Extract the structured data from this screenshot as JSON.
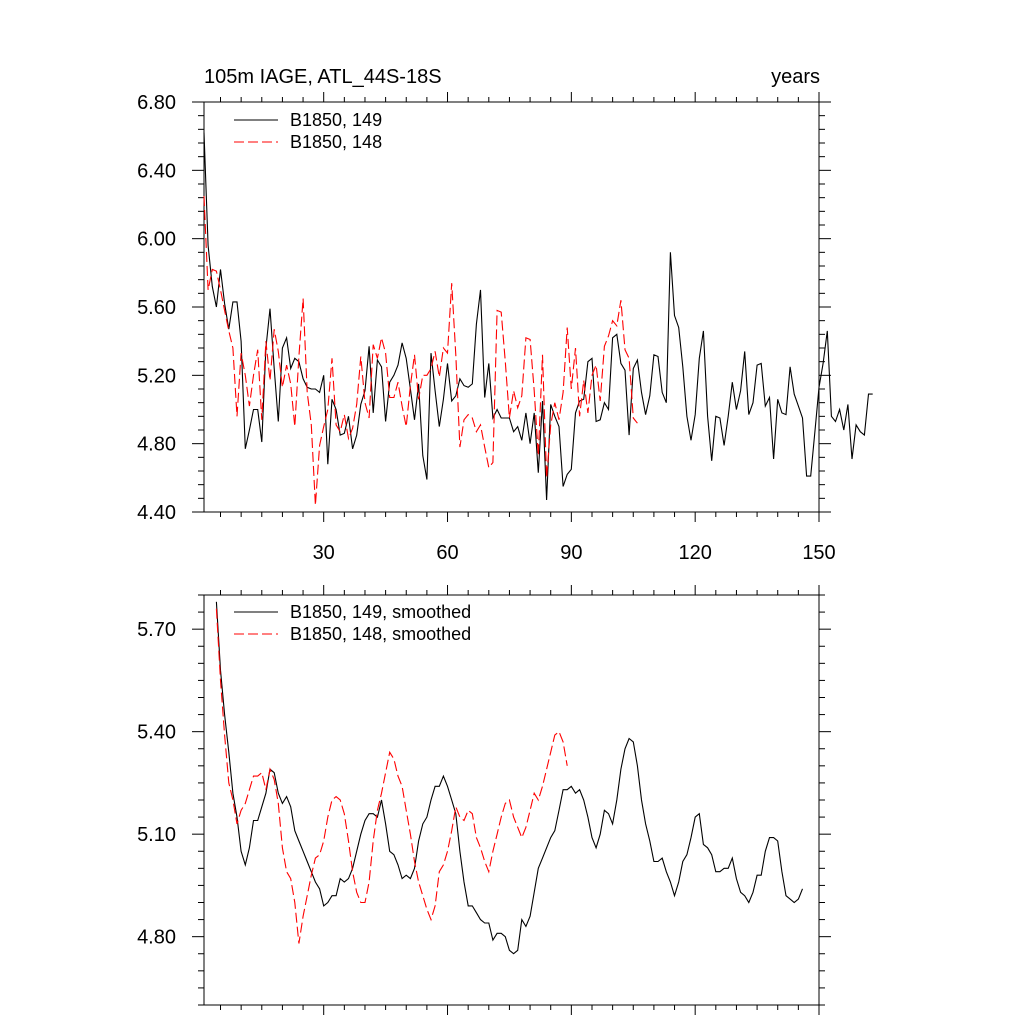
{
  "chart_data": [
    {
      "type": "line",
      "title": "105m IAGE, ATL_44S-18S",
      "right_title": "years",
      "xlim": [
        1,
        150
      ],
      "ylim": [
        4.4,
        6.8
      ],
      "x_ticks": [
        30,
        60,
        90,
        120,
        150
      ],
      "y_ticks": [
        4.4,
        4.8,
        5.2,
        5.6,
        6.0,
        6.4,
        6.8
      ],
      "y_tick_labels": [
        "4.40",
        "4.80",
        "5.20",
        "5.60",
        "6.00",
        "6.40",
        "6.80"
      ],
      "legend_position": "top-left",
      "grid": false,
      "series": [
        {
          "name": "B1850, 149",
          "color": "#000000",
          "dash": "solid",
          "values": [
            6.62,
            5.96,
            5.72,
            5.6,
            5.82,
            5.62,
            5.47,
            5.63,
            5.63,
            5.4,
            4.77,
            4.88,
            5.0,
            5.0,
            4.81,
            5.36,
            5.59,
            5.24,
            4.93,
            5.36,
            5.42,
            5.24,
            5.3,
            5.28,
            5.18,
            5.13,
            5.12,
            5.12,
            5.1,
            5.2,
            4.68,
            5.06,
            5.0,
            4.85,
            4.86,
            4.96,
            4.77,
            4.85,
            5.03,
            5.11,
            5.37,
            4.98,
            5.29,
            5.25,
            4.93,
            5.16,
            5.2,
            5.26,
            5.39,
            5.3,
            5.12,
            4.94,
            5.15,
            4.73,
            4.59,
            5.33,
            5.11,
            4.9,
            5.06,
            5.27,
            5.05,
            5.08,
            5.18,
            5.14,
            5.13,
            5.15,
            5.5,
            5.7,
            5.07,
            5.27,
            4.95,
            5.0,
            4.95,
            4.95,
            4.95,
            4.87,
            4.9,
            4.82,
            4.98,
            4.8,
            4.98,
            4.63,
            5.05,
            4.47,
            5.03,
            4.96,
            4.9,
            4.55,
            4.62,
            4.65,
            4.98,
            5.05,
            5.06,
            5.28,
            5.3,
            4.93,
            4.94,
            5.04,
            5.0,
            5.42,
            5.44,
            5.27,
            5.23,
            4.85,
            5.24,
            5.29,
            5.1,
            4.97,
            5.08,
            5.32,
            5.31,
            5.1,
            5.04,
            5.92,
            5.55,
            5.48,
            5.25,
            4.96,
            4.82,
            4.97,
            5.3,
            5.46,
            4.96,
            4.7,
            4.96,
            4.95,
            4.79,
            4.96,
            5.16,
            5.0,
            5.11,
            5.34,
            4.97,
            5.04,
            5.26,
            5.27,
            5.02,
            5.07,
            4.71,
            5.06,
            4.98,
            4.97,
            5.25,
            5.09,
            5.02,
            4.95,
            4.61,
            4.61,
            4.87,
            5.13,
            5.27,
            5.46,
            4.96,
            4.93,
            5.0,
            4.88,
            5.03,
            4.71,
            4.91,
            4.87,
            4.85,
            5.09,
            5.09
          ]
        },
        {
          "name": "B1850, 148",
          "color": "#ff0000",
          "dash": "dashed",
          "values": [
            6.25,
            5.7,
            5.82,
            5.81,
            5.7,
            5.58,
            5.46,
            5.36,
            4.96,
            5.33,
            5.2,
            5.02,
            5.2,
            5.35,
            4.94,
            5.4,
            5.17,
            5.47,
            5.34,
            5.13,
            5.26,
            5.15,
            4.9,
            5.31,
            5.65,
            5.1,
            4.91,
            4.44,
            4.79,
            4.9,
            5.0,
            5.3,
            4.91,
            4.87,
            4.97,
            4.83,
            4.89,
            5.03,
            5.31,
            5.04,
            4.95,
            5.38,
            5.3,
            5.42,
            5.33,
            5.07,
            5.07,
            5.16,
            5.02,
            4.9,
            5.14,
            5.32,
            5.06,
            5.2,
            5.2,
            5.24,
            5.34,
            5.19,
            5.36,
            5.33,
            5.74,
            5.32,
            4.78,
            4.94,
            4.97,
            4.95,
            4.87,
            4.91,
            4.78,
            4.66,
            4.69,
            5.58,
            5.57,
            5.28,
            4.95,
            5.11,
            5.01,
            5.08,
            5.42,
            5.41,
            5.11,
            4.73,
            5.32,
            4.6,
            4.91,
            5.04,
            4.94,
            5.1,
            5.48,
            5.12,
            5.36,
            4.96,
            5.17,
            4.98,
            5.2,
            5.26,
            5.05,
            5.37,
            5.43,
            5.52,
            5.49,
            5.64,
            5.35,
            5.3,
            4.95,
            4.92
          ]
        }
      ]
    },
    {
      "type": "line",
      "xlim": [
        1,
        150
      ],
      "ylim": [
        4.6,
        5.8
      ],
      "x_ticks": [
        30,
        60,
        90,
        120,
        150
      ],
      "y_ticks": [
        4.8,
        5.1,
        5.4,
        5.7
      ],
      "y_tick_labels": [
        "4.80",
        "5.10",
        "5.40",
        "5.70"
      ],
      "legend_position": "top-left",
      "grid": false,
      "series": [
        {
          "name": "B1850, 149, smoothed",
          "color": "#000000",
          "dash": "solid",
          "start_x": 4,
          "values": [
            5.78,
            5.58,
            5.45,
            5.34,
            5.22,
            5.15,
            5.05,
            5.01,
            5.06,
            5.14,
            5.14,
            5.18,
            5.22,
            5.29,
            5.28,
            5.22,
            5.19,
            5.21,
            5.18,
            5.11,
            5.08,
            5.05,
            5.02,
            4.99,
            4.96,
            4.94,
            4.89,
            4.9,
            4.92,
            4.92,
            4.97,
            4.96,
            4.97,
            5.0,
            5.05,
            5.1,
            5.14,
            5.16,
            5.16,
            5.15,
            5.2,
            5.13,
            5.05,
            5.04,
            5.01,
            4.97,
            4.98,
            4.97,
            5.0,
            5.08,
            5.13,
            5.15,
            5.2,
            5.24,
            5.24,
            5.27,
            5.24,
            5.2,
            5.16,
            5.05,
            4.96,
            4.89,
            4.89,
            4.87,
            4.85,
            4.84,
            4.84,
            4.79,
            4.81,
            4.81,
            4.8,
            4.76,
            4.75,
            4.76,
            4.85,
            4.83,
            4.86,
            4.93,
            5.0,
            5.03,
            5.06,
            5.09,
            5.11,
            5.17,
            5.23,
            5.23,
            5.24,
            5.22,
            5.23,
            5.2,
            5.15,
            5.09,
            5.06,
            5.1,
            5.17,
            5.16,
            5.13,
            5.2,
            5.29,
            5.35,
            5.38,
            5.37,
            5.3,
            5.2,
            5.13,
            5.08,
            5.02,
            5.02,
            5.03,
            4.99,
            4.96,
            4.92,
            4.96,
            5.02,
            5.04,
            5.09,
            5.15,
            5.16,
            5.07,
            5.06,
            5.04,
            4.99,
            4.99,
            5.0,
            5.0,
            5.03,
            4.97,
            4.93,
            4.92,
            4.9,
            4.93,
            4.98,
            4.98,
            5.05,
            5.09,
            5.09,
            5.08,
            4.99,
            4.92,
            4.91,
            4.9,
            4.91,
            4.94
          ]
        },
        {
          "name": "B1850, 148, smoothed",
          "color": "#ff0000",
          "dash": "dashed",
          "start_x": 4,
          "values": [
            5.76,
            5.55,
            5.39,
            5.25,
            5.2,
            5.13,
            5.17,
            5.19,
            5.23,
            5.27,
            5.27,
            5.28,
            5.23,
            5.29,
            5.26,
            5.19,
            5.06,
            4.99,
            4.97,
            4.9,
            4.78,
            4.86,
            4.92,
            4.98,
            5.03,
            5.04,
            5.08,
            5.15,
            5.2,
            5.21,
            5.2,
            5.16,
            5.08,
            4.99,
            4.93,
            4.9,
            4.9,
            4.96,
            5.08,
            5.17,
            5.22,
            5.28,
            5.34,
            5.32,
            5.27,
            5.24,
            5.17,
            5.1,
            5.02,
            4.96,
            4.92,
            4.88,
            4.85,
            4.89,
            4.99,
            5.01,
            5.05,
            5.11,
            5.18,
            5.15,
            5.14,
            5.17,
            5.16,
            5.09,
            5.06,
            5.02,
            4.99,
            5.05,
            5.1,
            5.15,
            5.19,
            5.2,
            5.15,
            5.12,
            5.09,
            5.12,
            5.17,
            5.22,
            5.2,
            5.24,
            5.29,
            5.34,
            5.39,
            5.4,
            5.37,
            5.3
          ]
        }
      ]
    }
  ]
}
